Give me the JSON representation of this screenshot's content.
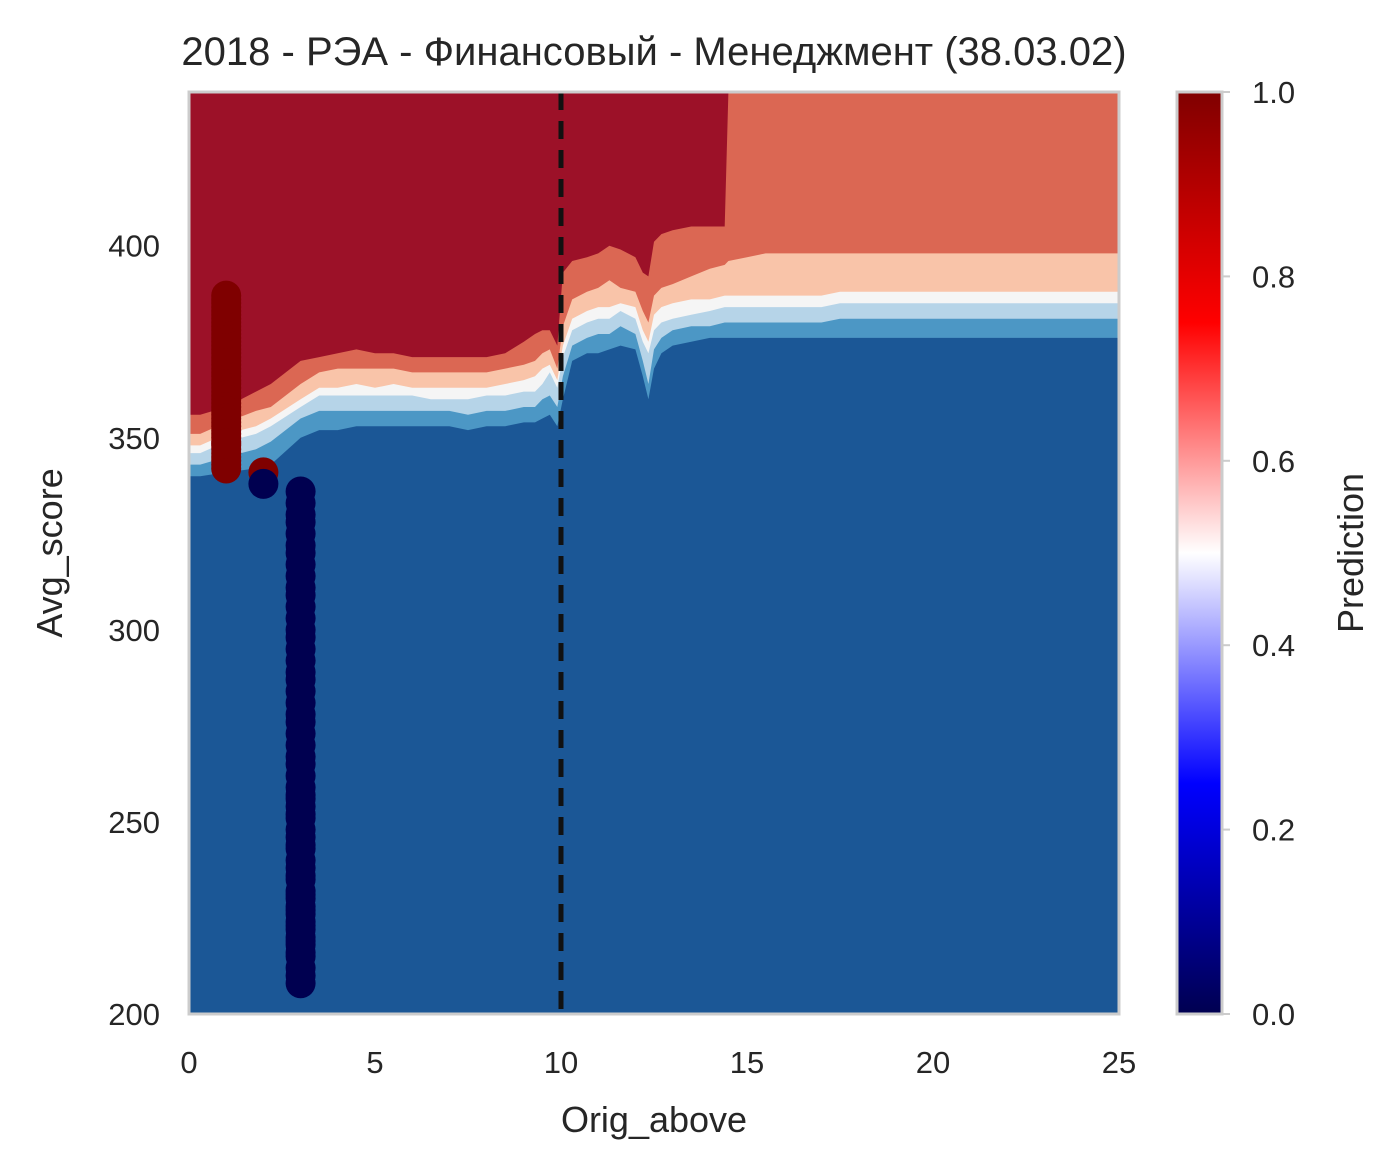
{
  "chart_data": {
    "type": "heatmap",
    "title": "2018 - РЭА - Финансовый - Менеджмент (38.03.02)",
    "xlabel": "Orig_above",
    "ylabel": "Avg_score",
    "xlim": [
      0,
      25
    ],
    "ylim": [
      200,
      440
    ],
    "xticks": [
      "0",
      "5",
      "10",
      "15",
      "20",
      "25"
    ],
    "yticks": [
      "200",
      "250",
      "300",
      "350",
      "400"
    ],
    "grid": false,
    "threshold_line": {
      "x": 10,
      "style": "dashed",
      "color": "#111111"
    },
    "contour_levels": [
      {
        "name": "0.0-0.3",
        "color": "#1b5796"
      },
      {
        "name": "0.3-0.4",
        "color": "#4c97c5"
      },
      {
        "name": "0.4-0.5",
        "color": "#b6d4e8"
      },
      {
        "name": "0.5-0.6",
        "color": "#f5f5f5"
      },
      {
        "name": "0.6-0.7",
        "color": "#f9c4a9"
      },
      {
        "name": "0.7-0.9",
        "color": "#db6753"
      },
      {
        "name": "0.9-1.0",
        "color": "#9c1128"
      }
    ],
    "boundaries_x": [
      0,
      0.3,
      1,
      1.8,
      2.2,
      3,
      3.5,
      4,
      4.5,
      5,
      5.5,
      6,
      6.5,
      7,
      7.5,
      8,
      8.5,
      9,
      9.3,
      9.5,
      9.7,
      9.9,
      10.05,
      10.3,
      10.7,
      11,
      11.3,
      11.6,
      12,
      12.2,
      12.35,
      12.5,
      12.7,
      13,
      13.5,
      14,
      14.4,
      14.5,
      15,
      15.5,
      16,
      17,
      17.5,
      18,
      19,
      20,
      21,
      22,
      23,
      24,
      25
    ],
    "boundaries": [
      [
        340,
        340,
        341,
        342,
        343,
        350,
        352,
        352,
        353,
        353,
        353,
        353,
        353,
        353,
        352,
        353,
        353,
        354,
        354,
        355,
        356,
        353,
        360,
        370,
        372,
        372,
        373,
        374,
        373,
        366,
        360,
        368,
        372,
        374,
        375,
        376,
        376,
        376,
        376,
        376,
        376,
        376,
        376,
        376,
        376,
        376,
        376,
        376,
        376,
        376,
        376
      ],
      [
        343,
        343,
        345,
        347,
        349,
        355,
        357,
        357,
        357,
        357,
        357,
        357,
        357,
        357,
        356,
        357,
        357,
        358,
        358,
        360,
        361,
        358,
        366,
        374,
        376,
        377,
        377,
        379,
        377,
        370,
        364,
        373,
        376,
        378,
        379,
        379,
        380,
        380,
        380,
        380,
        380,
        380,
        381,
        381,
        381,
        381,
        381,
        381,
        381,
        381,
        381
      ],
      [
        346,
        346,
        349,
        351,
        353,
        358,
        361,
        361,
        361,
        361,
        361,
        361,
        360,
        360,
        360,
        361,
        361,
        362,
        362,
        364,
        367,
        363,
        371,
        378,
        380,
        381,
        381,
        383,
        381,
        375,
        372,
        378,
        380,
        381,
        382,
        383,
        384,
        384,
        384,
        384,
        384,
        384,
        385,
        385,
        385,
        385,
        385,
        385,
        385,
        385,
        385
      ],
      [
        348,
        348,
        351,
        353,
        355,
        360,
        363,
        363,
        364,
        363,
        364,
        363,
        363,
        363,
        363,
        363,
        364,
        365,
        366,
        368,
        369,
        365,
        374,
        381,
        383,
        384,
        384,
        385,
        384,
        378,
        375,
        382,
        384,
        385,
        386,
        386,
        387,
        387,
        387,
        387,
        387,
        387,
        388,
        388,
        388,
        388,
        388,
        388,
        388,
        388,
        388
      ],
      [
        351,
        351,
        354,
        357,
        358,
        364,
        367,
        368,
        368,
        368,
        368,
        367,
        367,
        367,
        367,
        367,
        368,
        369,
        370,
        372,
        373,
        368,
        379,
        386,
        388,
        389,
        391,
        389,
        388,
        383,
        380,
        387,
        389,
        390,
        392,
        394,
        395,
        396,
        397,
        398,
        398,
        398,
        398,
        398,
        398,
        398,
        398,
        398,
        398,
        398,
        398
      ],
      [
        356,
        356,
        358,
        362,
        364,
        370,
        371,
        372,
        373,
        372,
        372,
        371,
        371,
        371,
        371,
        371,
        372,
        375,
        377,
        378,
        378,
        374,
        393,
        396,
        397,
        398,
        400,
        399,
        397,
        393,
        392,
        401,
        403,
        404,
        405,
        405,
        405,
        440,
        440,
        440,
        440,
        440,
        440,
        440,
        440,
        440,
        440,
        440,
        440,
        440,
        440
      ]
    ],
    "points": [
      {
        "class": "1",
        "color": "#7f0000",
        "x": [
          1,
          1,
          1,
          1,
          1,
          1,
          1,
          1,
          1,
          1,
          1,
          1,
          1,
          1,
          1,
          1,
          1,
          1,
          1,
          1,
          1,
          1,
          1,
          1,
          1,
          1,
          1,
          1,
          1,
          1,
          1,
          1,
          1,
          1,
          1,
          1,
          1,
          1,
          1,
          1,
          1,
          1,
          1,
          1,
          1,
          1,
          1,
          2
        ],
        "y": [
          387,
          380,
          378,
          376,
          374,
          372,
          371,
          370,
          369,
          368,
          367,
          366,
          365,
          364,
          363,
          362,
          361,
          360,
          359,
          358,
          357,
          356,
          355,
          354,
          353,
          352,
          351,
          350,
          349,
          348,
          347,
          346,
          345,
          344,
          343,
          342,
          375,
          373,
          377,
          379,
          381,
          382,
          383,
          384,
          385,
          386,
          348.5,
          341
        ]
      },
      {
        "class": "0",
        "color": "#000050",
        "x": [
          2,
          3,
          3,
          3,
          3,
          3,
          3,
          3,
          3,
          3,
          3,
          3,
          3,
          3,
          3,
          3,
          3,
          3,
          3,
          3,
          3,
          3,
          3,
          3,
          3,
          3,
          3,
          3,
          3,
          3,
          3,
          3,
          3,
          3,
          3,
          3,
          3,
          3,
          3,
          3,
          3,
          3,
          3,
          3,
          3,
          3,
          3,
          3,
          3,
          3,
          3,
          3,
          3,
          3,
          3,
          3,
          3,
          3,
          3,
          3
        ],
        "y": [
          338,
          336,
          333,
          330,
          328,
          325,
          322,
          320,
          317,
          314,
          311,
          309,
          306,
          303,
          300,
          298,
          295,
          292,
          289,
          287,
          284,
          281,
          278,
          276,
          273,
          270,
          267,
          265,
          262,
          259,
          257,
          254,
          251,
          248,
          246,
          243,
          240,
          238,
          235,
          232,
          230,
          228,
          226,
          224,
          222,
          220,
          218,
          216,
          212,
          210,
          208,
          256,
          252,
          244,
          236,
          231,
          227,
          223,
          219,
          215
        ]
      }
    ],
    "colorbar": {
      "label": "Prediction",
      "ticks": [
        "0.0",
        "0.2",
        "0.4",
        "0.6",
        "0.8",
        "1.0"
      ],
      "stops": [
        "#000050",
        "#0000ff",
        "#ffffff",
        "#ff0000",
        "#800000"
      ]
    }
  }
}
